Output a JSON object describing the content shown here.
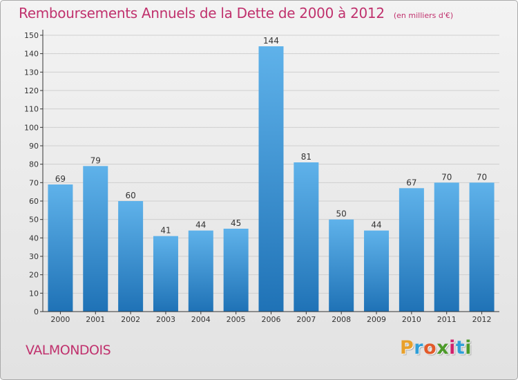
{
  "header": {
    "title": "Remboursements Annuels de la Dette de 2000 à 2012",
    "unit": "(en milliers d'€)"
  },
  "footer": {
    "city": "VALMONDOIS",
    "logo": "Proxiti",
    "logo_colors": [
      "#e8a02a",
      "#2f9fd8",
      "#e25a2a",
      "#4c9a2a",
      "#d0226c",
      "#2f9fd8",
      "#4c9a2a"
    ]
  },
  "colors": {
    "title": "#c0316d",
    "bar_top": "#5fb2ea",
    "bar_bottom": "#1f72b6",
    "grid": "#cfcfcf",
    "axis": "#333333"
  },
  "chart_data": {
    "type": "bar",
    "title": "Remboursements Annuels de la Dette de 2000 à 2012",
    "xlabel": "",
    "ylabel": "",
    "ylim": [
      0,
      150
    ],
    "ytick_step": 10,
    "grid": true,
    "categories": [
      "2000",
      "2001",
      "2002",
      "2003",
      "2004",
      "2005",
      "2006",
      "2007",
      "2008",
      "2009",
      "2010",
      "2011",
      "2012"
    ],
    "values": [
      69,
      79,
      60,
      41,
      44,
      45,
      144,
      81,
      50,
      44,
      67,
      70,
      70
    ]
  }
}
